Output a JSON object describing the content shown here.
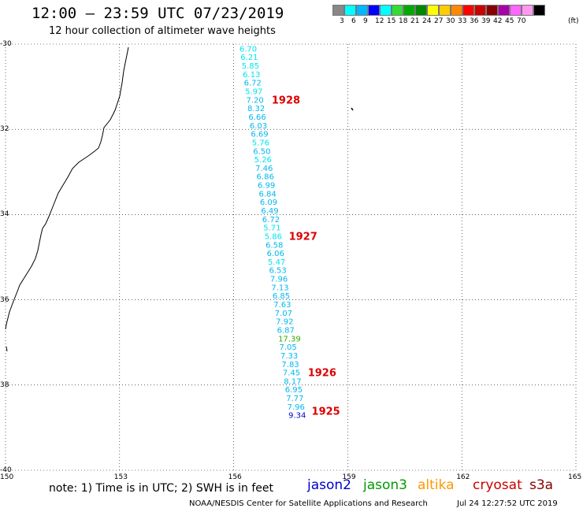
{
  "header": {
    "title": "12:00 – 23:59 UTC 07/23/2019",
    "subtitle": "12 hour collection of altimeter wave heights"
  },
  "scale": {
    "colors": [
      "#888888",
      "#00ffff",
      "#00b8ff",
      "#0000ff",
      "#00ffff",
      "#33dd33",
      "#00aa00",
      "#008800",
      "#ffff00",
      "#ffcc00",
      "#ff8800",
      "#ff0000",
      "#cc0000",
      "#880000",
      "#aa00aa",
      "#ff66ff",
      "#ff99ee",
      "#000000"
    ],
    "ticks": [
      "3",
      "6",
      "9",
      "12",
      "15",
      "18",
      "21",
      "24",
      "27",
      "30",
      "33",
      "36",
      "39",
      "42",
      "45",
      "70",
      "(ft)"
    ]
  },
  "axes": {
    "lat_labels": [
      "-30",
      "32",
      "34",
      "36",
      "38",
      "-40"
    ],
    "lon_labels": [
      "150",
      "153",
      "156",
      "159",
      "162",
      "165"
    ]
  },
  "track": {
    "points": [
      {
        "lat": -30.1,
        "lon": 156.15,
        "v": "6.70",
        "color": "#00e5ee"
      },
      {
        "lat": -30.3,
        "lon": 156.18,
        "v": "6.21",
        "color": "#00e5ee"
      },
      {
        "lat": -30.5,
        "lon": 156.21,
        "v": "5.85",
        "color": "#00e5ee"
      },
      {
        "lat": -30.7,
        "lon": 156.24,
        "v": "6.13",
        "color": "#00e5ee"
      },
      {
        "lat": -30.9,
        "lon": 156.27,
        "v": "6.72",
        "color": "#00b8ee"
      },
      {
        "lat": -31.1,
        "lon": 156.3,
        "v": "5.97",
        "color": "#00e5ee"
      },
      {
        "lat": -31.3,
        "lon": 156.33,
        "v": "7.20",
        "color": "#00b8ee"
      },
      {
        "lat": -31.5,
        "lon": 156.36,
        "v": "8.32",
        "color": "#00b8ee"
      },
      {
        "lat": -31.7,
        "lon": 156.39,
        "v": "6.66",
        "color": "#00b8ee"
      },
      {
        "lat": -31.9,
        "lon": 156.42,
        "v": "6.03",
        "color": "#00b8ee"
      },
      {
        "lat": -32.1,
        "lon": 156.45,
        "v": "6.69",
        "color": "#00b8ee"
      },
      {
        "lat": -32.3,
        "lon": 156.48,
        "v": "5.76",
        "color": "#00e5ee"
      },
      {
        "lat": -32.5,
        "lon": 156.51,
        "v": "6.50",
        "color": "#00b8ee"
      },
      {
        "lat": -32.7,
        "lon": 156.54,
        "v": "5.26",
        "color": "#00e5ee"
      },
      {
        "lat": -32.9,
        "lon": 156.57,
        "v": "7.46",
        "color": "#00b8ee"
      },
      {
        "lat": -33.1,
        "lon": 156.6,
        "v": "6.86",
        "color": "#00b8ee"
      },
      {
        "lat": -33.3,
        "lon": 156.63,
        "v": "6.99",
        "color": "#00b8ee"
      },
      {
        "lat": -33.5,
        "lon": 156.66,
        "v": "6.84",
        "color": "#00b8ee"
      },
      {
        "lat": -33.7,
        "lon": 156.69,
        "v": "6.09",
        "color": "#00b8ee"
      },
      {
        "lat": -33.9,
        "lon": 156.72,
        "v": "6.49",
        "color": "#00b8ee"
      },
      {
        "lat": -34.1,
        "lon": 156.75,
        "v": "6.72",
        "color": "#00b8ee"
      },
      {
        "lat": -34.3,
        "lon": 156.78,
        "v": "5.71",
        "color": "#00e5ee"
      },
      {
        "lat": -34.5,
        "lon": 156.81,
        "v": "5.86",
        "color": "#00e5ee"
      },
      {
        "lat": -34.7,
        "lon": 156.84,
        "v": "6.58",
        "color": "#00b8ee"
      },
      {
        "lat": -34.9,
        "lon": 156.87,
        "v": "6.06",
        "color": "#00b8ee"
      },
      {
        "lat": -35.1,
        "lon": 156.9,
        "v": "5.47",
        "color": "#00e5ee"
      },
      {
        "lat": -35.3,
        "lon": 156.93,
        "v": "6.53",
        "color": "#00b8ee"
      },
      {
        "lat": -35.5,
        "lon": 156.96,
        "v": "7.96",
        "color": "#00b8ee"
      },
      {
        "lat": -35.7,
        "lon": 156.99,
        "v": "7.13",
        "color": "#00b8ee"
      },
      {
        "lat": -35.9,
        "lon": 157.02,
        "v": "6.85",
        "color": "#00b8ee"
      },
      {
        "lat": -36.1,
        "lon": 157.05,
        "v": "7.63",
        "color": "#00b8ee"
      },
      {
        "lat": -36.3,
        "lon": 157.08,
        "v": "7.07",
        "color": "#00b8ee"
      },
      {
        "lat": -36.5,
        "lon": 157.11,
        "v": "7.92",
        "color": "#00b8ee"
      },
      {
        "lat": -36.7,
        "lon": 157.14,
        "v": "6.87",
        "color": "#00b8ee"
      },
      {
        "lat": -36.9,
        "lon": 157.17,
        "v": "17.39",
        "color": "#33aa00"
      },
      {
        "lat": -37.1,
        "lon": 157.2,
        "v": "7.05",
        "color": "#00b8ee"
      },
      {
        "lat": -37.3,
        "lon": 157.23,
        "v": "7.33",
        "color": "#00b8ee"
      },
      {
        "lat": -37.5,
        "lon": 157.26,
        "v": "7.83",
        "color": "#00b8ee"
      },
      {
        "lat": -37.7,
        "lon": 157.29,
        "v": "7.45",
        "color": "#00b8ee"
      },
      {
        "lat": -37.9,
        "lon": 157.32,
        "v": "8.17",
        "color": "#00b8ee"
      },
      {
        "lat": -38.1,
        "lon": 157.35,
        "v": "6.95",
        "color": "#00b8ee"
      },
      {
        "lat": -38.3,
        "lon": 157.38,
        "v": "7.77",
        "color": "#00b8ee"
      },
      {
        "lat": -38.5,
        "lon": 157.41,
        "v": "7.96",
        "color": "#00b8ee"
      },
      {
        "lat": -38.7,
        "lon": 157.44,
        "v": "9.34",
        "color": "#0000cc"
      }
    ],
    "time_labels": [
      {
        "lat": -31.3,
        "lon": 157.0,
        "text": "1928"
      },
      {
        "lat": -34.5,
        "lon": 157.45,
        "text": "1927"
      },
      {
        "lat": -37.7,
        "lon": 157.95,
        "text": "1926"
      },
      {
        "lat": -38.6,
        "lon": 158.05,
        "text": "1925"
      }
    ]
  },
  "footer": {
    "note": "note:  1) Time is in UTC;  2) SWH is in feet",
    "satellites": [
      {
        "name": "jason2",
        "color": "#0000cc"
      },
      {
        "name": "jason3",
        "color": "#009900"
      },
      {
        "name": "altika",
        "color": "#ff9900"
      },
      {
        "name": "cryosat",
        "color": "#cc0000"
      },
      {
        "name": "s3a",
        "color": "#880000"
      }
    ],
    "credit": "NOAA/NESDIS Center for Satellite Applications and Research",
    "timestamp": "Jul 24 12:27:52 UTC 2019"
  }
}
